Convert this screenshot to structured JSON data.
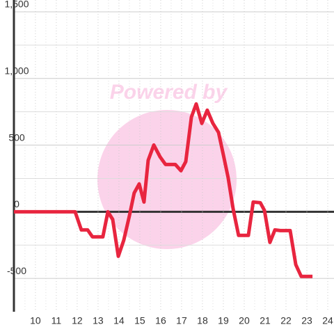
{
  "chart_data": {
    "type": "line",
    "annotations": [
      "Powered by"
    ],
    "x": [
      8.97,
      11.9,
      12.2,
      12.5,
      12.73,
      13.23,
      13.47,
      13.7,
      13.97,
      14.23,
      14.5,
      14.73,
      14.97,
      15.2,
      15.4,
      15.67,
      15.97,
      16.23,
      16.7,
      16.97,
      17.2,
      17.47,
      17.7,
      17.97,
      18.23,
      18.5,
      18.77,
      19.0,
      19.23,
      19.47,
      19.73,
      20.2,
      20.43,
      20.77,
      20.97,
      21.23,
      21.47,
      21.73,
      22.2,
      22.47,
      22.73,
      23.27
    ],
    "series": [
      {
        "color": "#e8253f",
        "values": [
          0,
          0,
          -136,
          -136,
          -188,
          -188,
          0,
          -57,
          -334,
          -214,
          -31,
          141,
          209,
          73,
          386,
          501,
          412,
          355,
          355,
          308,
          376,
          710,
          809,
          663,
          762,
          663,
          595,
          428,
          256,
          21,
          -177,
          -177,
          73,
          68,
          10,
          -230,
          -136,
          -141,
          -141,
          -397,
          -485,
          -485
        ]
      }
    ],
    "xlim": [
      8.97,
      24.3
    ],
    "ylim": [
      -750,
      1500
    ],
    "xticks": [
      10,
      11,
      12,
      13,
      14,
      15,
      16,
      17,
      18,
      19,
      20,
      21,
      22,
      23,
      24
    ],
    "xminor": [
      9.5,
      10.5,
      11.5,
      12.5,
      13.5,
      14.5,
      15.5,
      16.5,
      17.5,
      18.5,
      19.5,
      20.5,
      21.5,
      22.5,
      23.5
    ],
    "yticks": [
      {
        "value": 1500,
        "label": "1,500"
      },
      {
        "value": 1000,
        "label": "1,000"
      },
      500,
      0,
      -500
    ],
    "yminor": [
      1250,
      750,
      250,
      -250
    ],
    "grid": true
  }
}
